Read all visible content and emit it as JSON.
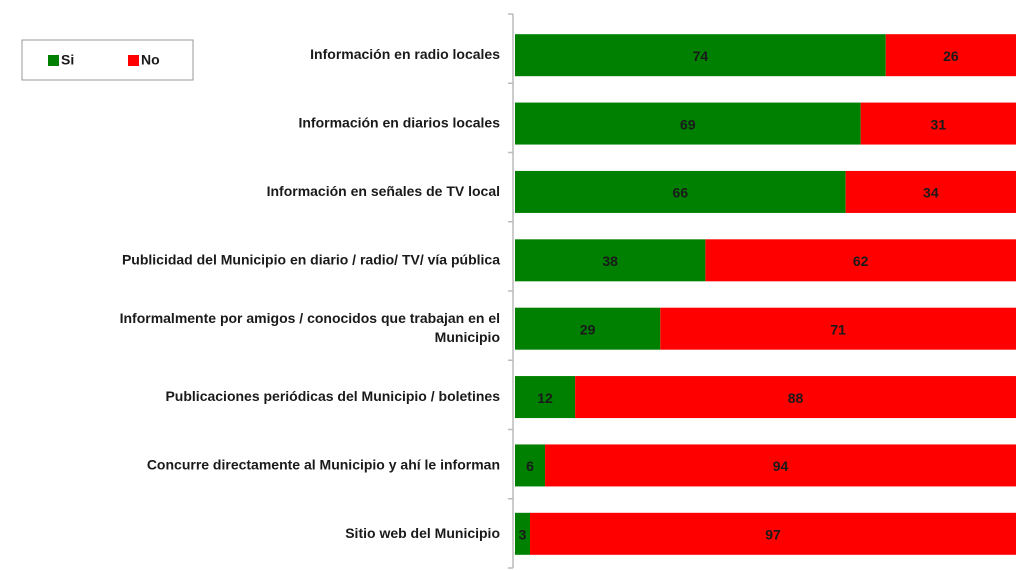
{
  "chart_data": {
    "type": "stacked_barh",
    "categories": [
      "Información en radio locales",
      "Información en diarios locales",
      "Información en señales de TV local",
      "Publicidad del Municipio en diario / radio/ TV/ vía pública",
      "Informalmente por amigos / conocidos que trabajan en el Municipio",
      "Publicaciones periódicas del Municipio / boletines",
      "Concurre directamente al Municipio y ahí le informan",
      "Sitio web del Municipio"
    ],
    "series": [
      {
        "name": "Si",
        "color": "#008000",
        "values": [
          74,
          69,
          66,
          38,
          29,
          12,
          6,
          3
        ]
      },
      {
        "name": "No",
        "color": "#ff0000",
        "values": [
          26,
          31,
          34,
          62,
          71,
          88,
          94,
          97
        ]
      }
    ],
    "xlim": [
      0,
      100
    ],
    "legend": "upper left"
  }
}
